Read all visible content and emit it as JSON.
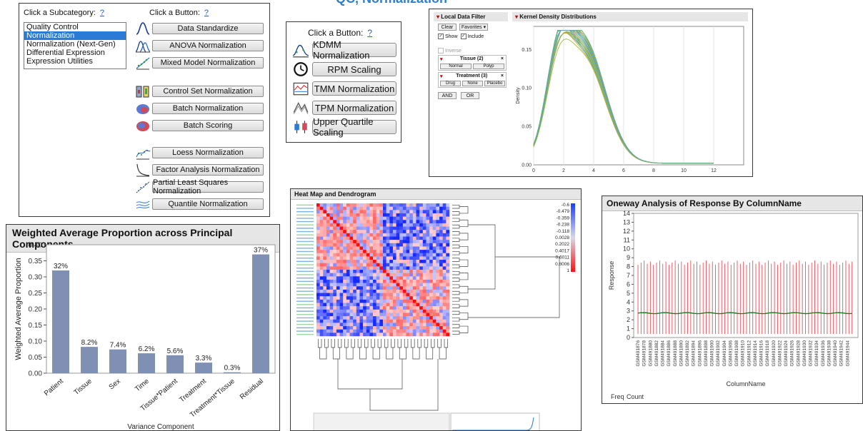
{
  "top_banner": "QC, Normalization",
  "qc_panel": {
    "subcategory_label": "Click a Subcategory:",
    "button_label": "Click a Button:",
    "help": "?",
    "subcategories": [
      {
        "label": "Quality Control",
        "selected": false
      },
      {
        "label": "Normalization",
        "selected": true
      },
      {
        "label": "Normalization (Next-Gen)",
        "selected": false
      },
      {
        "label": "Differential Expression",
        "selected": false
      },
      {
        "label": "Expression Utilities",
        "selected": false
      }
    ],
    "buttons": [
      {
        "label": "Data Standardize",
        "icon": "bell-curve-icon"
      },
      {
        "label": "ANOVA Normalization",
        "icon": "anova-curves-icon"
      },
      {
        "label": "Mixed Model Normalization",
        "icon": "scatter-trend-icon"
      },
      {
        "label": "Control Set Normalization",
        "icon": "control-set-icon"
      },
      {
        "label": "Batch Normalization",
        "icon": "batch-blob-icon"
      },
      {
        "label": "Batch Scoring",
        "icon": "batch-scoring-icon"
      },
      {
        "label": "Loess Normalization",
        "icon": "loess-icon"
      },
      {
        "label": "Factor Analysis Normalization",
        "icon": "factor-decay-icon"
      },
      {
        "label": "Partial Least Squares Normalization",
        "icon": "pls-scatter-icon"
      },
      {
        "label": "Quantile Normalization",
        "icon": "quantile-icon"
      }
    ]
  },
  "nextgen_panel": {
    "button_label": "Click a Button:",
    "help": "?",
    "buttons": [
      {
        "label": "KDMM Normalization",
        "icon": "kdmm-icon"
      },
      {
        "label": "RPM Scaling",
        "icon": "clock-icon"
      },
      {
        "label": "TMM Normalization",
        "icon": "tmm-icon"
      },
      {
        "label": "TPM Normalization",
        "icon": "tpm-icon"
      },
      {
        "label": "Upper Quartile Scaling",
        "icon": "boxplot-icon"
      }
    ]
  },
  "filter_panel": {
    "filter_title": "Local Data Filter",
    "clear": "Clear",
    "favorites": "Favorites",
    "show": "Show",
    "include": "Include",
    "inverse": "Inverse",
    "tissue_title": "Tissue (2)",
    "tissue_levels": [
      "Normal",
      "Polyp"
    ],
    "treatment_title": "Treatment (3)",
    "treatment_levels": [
      "Drug",
      "None",
      "Placebo"
    ],
    "and": "AND",
    "or": "OR",
    "kde_title": "Kernel Density Distributions",
    "kde_ylabel": "Density",
    "kde_yticks": [
      "0.15",
      "0.10",
      "0.05",
      "0.00"
    ],
    "kde_xticks": [
      "0",
      "2",
      "4",
      "6",
      "8",
      "10",
      "12"
    ]
  },
  "heatmap_panel": {
    "title": "Heat Map and Dendrogram",
    "legend": [
      "-0.6",
      "-0.479",
      "-0.359",
      "-0.238",
      "-0.118",
      "0.0028",
      "0.2022",
      "0.4017",
      "0.6011",
      "0.8006",
      "1"
    ]
  },
  "pca_panel": {
    "chart_data": {
      "type": "bar",
      "title": "Weighted Average Proportion across Principal Components",
      "xlabel": "Variance Component",
      "ylabel": "Weighted Average Proportion",
      "categories": [
        "Patient",
        "Tissue",
        "Sex",
        "Time",
        "Tissue*Patient",
        "Treatment",
        "Treatment*Tissue",
        "Residual"
      ],
      "values": [
        0.32,
        0.082,
        0.074,
        0.062,
        0.056,
        0.033,
        0.003,
        0.37
      ],
      "labels": [
        "32%",
        "8.2%",
        "7.4%",
        "6.2%",
        "5.6%",
        "3.3%",
        "0.3%",
        "37%"
      ],
      "ylim": [
        0,
        0.4
      ],
      "yticks": [
        "0.00",
        "0.05",
        "0.10",
        "0.15",
        "0.20",
        "0.25",
        "0.30",
        "0.35",
        "0.40"
      ],
      "bar_color": "#8090b4"
    }
  },
  "oneway_panel": {
    "title": "Oneway Analysis of Response By ColumnName",
    "ylabel": "Response",
    "xlabel": "ColumnName",
    "yticks": [
      "0",
      "1",
      "2",
      "3",
      "4",
      "5",
      "6",
      "7",
      "8",
      "9",
      "10",
      "11",
      "12",
      "13",
      "14"
    ],
    "columns": [
      "GSM491876",
      "GSM491878",
      "GSM491880",
      "GSM491882",
      "GSM491884",
      "GSM491886",
      "GSM491888",
      "GSM491890",
      "GSM491892",
      "GSM491894",
      "GSM491896",
      "GSM491898",
      "GSM491900",
      "GSM491902",
      "GSM491904",
      "GSM491906",
      "GSM491908",
      "GSM491910",
      "GSM491912",
      "GSM491914",
      "GSM491916",
      "GSM491918",
      "GSM491920",
      "GSM491922",
      "GSM491924",
      "GSM491926",
      "GSM491928",
      "GSM491930",
      "GSM491932",
      "GSM491934",
      "GSM491936",
      "GSM491938",
      "GSM491940",
      "GSM491942",
      "GSM491944"
    ],
    "freq": "Freq",
    "count": "Count",
    "bar_color": "#e8505a",
    "mean_color": "#1f7a1f"
  }
}
